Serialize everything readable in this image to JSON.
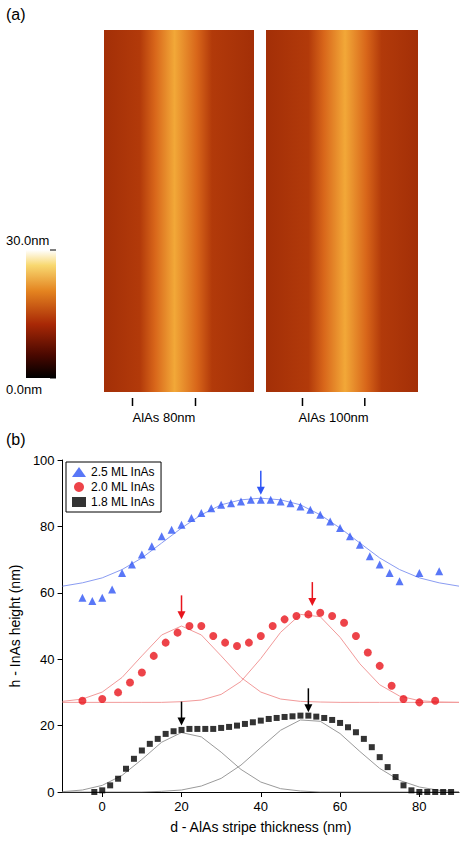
{
  "panel_a": {
    "panel_label": "(a)",
    "colorbar": {
      "range": [
        0,
        30
      ],
      "ticks": [
        {
          "value": 30,
          "label": "30.0nm"
        },
        {
          "value": 0,
          "label": "0.0nm"
        }
      ]
    },
    "images": [
      {
        "label": "AlAs 80nm"
      },
      {
        "label": "AlAs 100nm"
      }
    ]
  },
  "chart_data": {
    "panel_label": "(b)",
    "type": "scatter",
    "xlabel": "d - AlAs stripe thickness (nm)",
    "ylabel": "h - InAs height (nm)",
    "xlim": [
      -10,
      90
    ],
    "xticks": [
      0,
      20,
      40,
      60,
      80
    ],
    "ylim": [
      0,
      100
    ],
    "yticks": [
      0,
      20,
      40,
      60,
      80,
      100
    ],
    "grid": false,
    "legend": "upper left",
    "series": [
      {
        "name": "2.5 ML InAs",
        "color": "#2f55f5",
        "marker": "triangle",
        "x": [
          -5,
          -2.5,
          0,
          2.5,
          5,
          7.5,
          10,
          12.5,
          15,
          17.5,
          20,
          22.5,
          25,
          27.5,
          30,
          32.5,
          35,
          37.5,
          40,
          42.5,
          45,
          47.5,
          50,
          52.5,
          55,
          57.5,
          60,
          62.5,
          65,
          67.5,
          70,
          72.5,
          75,
          80,
          85
        ],
        "values": [
          58.5,
          57.5,
          58.5,
          61,
          66,
          68.5,
          71.5,
          74,
          77,
          79,
          80.5,
          82.5,
          84,
          85.5,
          86.5,
          87,
          87.5,
          88,
          88,
          88,
          87.5,
          87,
          86,
          85,
          83.5,
          81.5,
          79.5,
          77,
          74.5,
          71,
          68.5,
          66,
          63.5,
          66,
          66.5
        ],
        "peaks": [
          {
            "x": 40,
            "y": 89.5
          }
        ],
        "fits": [
          {
            "color": "#8a9cf2",
            "x": [
              -10,
              -5,
              0,
              5,
              10,
              15,
              20,
              25,
              30,
              35,
              40,
              45,
              50,
              55,
              60,
              65,
              70,
              75,
              80,
              85,
              90
            ],
            "values": [
              62,
              63,
              64.5,
              67,
              70.5,
              75,
              79.5,
              83.5,
              86.5,
              88,
              88.5,
              88,
              86.5,
              83.5,
              79.5,
              75,
              70.5,
              67,
              64.5,
              63,
              62
            ]
          }
        ]
      },
      {
        "name": "2.0 ML InAs",
        "color": "#e8141c",
        "marker": "circle",
        "x": [
          -5,
          0,
          4,
          7,
          10,
          13,
          16,
          19,
          22,
          25,
          28,
          31,
          34,
          37,
          40,
          43,
          46,
          49,
          52,
          55,
          58,
          61,
          64,
          67,
          70,
          73,
          76,
          80,
          84
        ],
        "values": [
          27.5,
          28,
          30,
          33,
          36,
          41,
          45,
          48,
          50,
          50,
          47,
          45,
          44,
          45,
          47,
          50,
          52,
          53,
          53.5,
          54,
          53,
          51,
          47,
          42,
          38,
          32,
          28,
          27,
          27.5
        ],
        "peaks": [
          {
            "x": 20,
            "y": 52
          },
          {
            "x": 53,
            "y": 56
          }
        ],
        "fits": [
          {
            "color": "#f29a9a",
            "x": [
              -10,
              -5,
              0,
              5,
              10,
              15,
              20,
              25,
              30,
              35,
              40,
              45,
              50,
              55,
              60,
              65,
              70,
              75,
              80,
              85,
              90
            ],
            "values": [
              27.3,
              28,
              30.1,
              34.5,
              41,
              47.3,
              50,
              47.3,
              41,
              34.5,
              30.1,
              28,
              27.3,
              27.1,
              27,
              27,
              27,
              27,
              27,
              27,
              27
            ]
          },
          {
            "color": "#f29a9a",
            "x": [
              -10,
              -5,
              0,
              5,
              10,
              15,
              20,
              25,
              30,
              35,
              40,
              45,
              50,
              55,
              60,
              65,
              70,
              75,
              80,
              85,
              90
            ],
            "values": [
              27,
              27,
              27,
              27,
              27,
              27,
              27.2,
              27.7,
              29.4,
              33.3,
              40.2,
              48.1,
              53.5,
              52.8,
              46.6,
              38.6,
              32.3,
              28.9,
              27.5,
              27.1,
              27
            ]
          }
        ]
      },
      {
        "name": "1.8 ML InAs",
        "color": "#000000",
        "marker": "square",
        "x": [
          -2,
          0,
          2,
          4,
          6,
          8,
          10,
          12,
          14,
          16,
          18,
          20,
          22,
          24,
          26,
          28,
          30,
          32,
          34,
          36,
          38,
          40,
          42,
          44,
          46,
          48,
          50,
          52,
          54,
          56,
          58,
          60,
          62,
          64,
          66,
          68,
          70,
          72,
          74,
          76,
          78,
          80,
          82,
          84,
          86,
          88
        ],
        "values": [
          0,
          0.5,
          2,
          4,
          7,
          10,
          12.5,
          14.5,
          16,
          17.5,
          18.3,
          18.7,
          19,
          19,
          19,
          19,
          19.3,
          19.6,
          20,
          20.5,
          21,
          21.5,
          22,
          22.3,
          22.6,
          22.8,
          23,
          23,
          22.7,
          22.3,
          21.7,
          20.8,
          19.5,
          18,
          16,
          13.5,
          10.5,
          7.5,
          4.5,
          2,
          0.5,
          0,
          0,
          0,
          0,
          0
        ],
        "peaks": [
          {
            "x": 20,
            "y": 20
          },
          {
            "x": 52,
            "y": 24
          }
        ],
        "fits": [
          {
            "color": "#9a9a9a",
            "x": [
              -10,
              -5,
              0,
              5,
              10,
              15,
              20,
              25,
              30,
              35,
              40,
              45,
              50,
              55,
              60,
              65,
              70,
              75,
              80,
              85,
              90
            ],
            "values": [
              0.1,
              0.6,
              2,
              5,
              9.8,
              15,
              17.9,
              16.6,
              12,
              6.8,
              3,
              1,
              0.3,
              0,
              0,
              0,
              0,
              0,
              0,
              0,
              0
            ]
          },
          {
            "color": "#9a9a9a",
            "x": [
              -10,
              -5,
              0,
              5,
              10,
              15,
              20,
              25,
              30,
              35,
              40,
              45,
              50,
              55,
              60,
              65,
              70,
              75,
              80,
              85,
              90
            ],
            "values": [
              0,
              0,
              0,
              0,
              0,
              0.2,
              0.6,
              1.8,
              4.1,
              8.1,
              13.4,
              18.6,
              21.7,
              21.3,
              17.6,
              12.2,
              7.1,
              3.5,
              1.5,
              0.5,
              0.1
            ]
          }
        ]
      }
    ]
  }
}
